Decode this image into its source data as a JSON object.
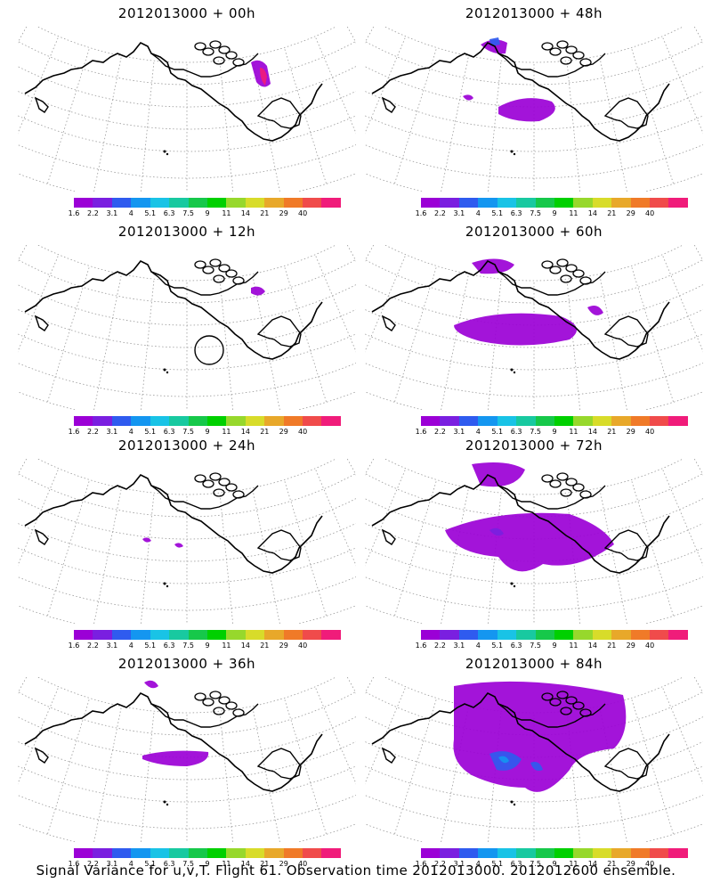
{
  "panels": [
    {
      "title": "2012013000 + 00h"
    },
    {
      "title": "2012013000 + 48h"
    },
    {
      "title": "2012013000 + 12h"
    },
    {
      "title": "2012013000 + 60h"
    },
    {
      "title": "2012013000 + 24h"
    },
    {
      "title": "2012013000 + 72h"
    },
    {
      "title": "2012013000 + 36h"
    },
    {
      "title": "2012013000 + 84h"
    }
  ],
  "colorbar": {
    "labels": [
      "1.6",
      "2.2",
      "3.1",
      "4",
      "5.1",
      "6.3",
      "7.5",
      "9",
      "11",
      "14",
      "21",
      "29",
      "40"
    ],
    "colors": [
      "#9b00d6",
      "#7a1fe0",
      "#2f5bef",
      "#1496f0",
      "#19c3e6",
      "#18c9a0",
      "#16c84a",
      "#00d000",
      "#97d82c",
      "#d8dc2a",
      "#e8a82a",
      "#f07a28",
      "#f04b4b",
      "#f01c7a"
    ]
  },
  "caption": "Signal Variance for u,v,T. Flight 61. Observation time 2012013000. 2012012600 ensemble."
}
